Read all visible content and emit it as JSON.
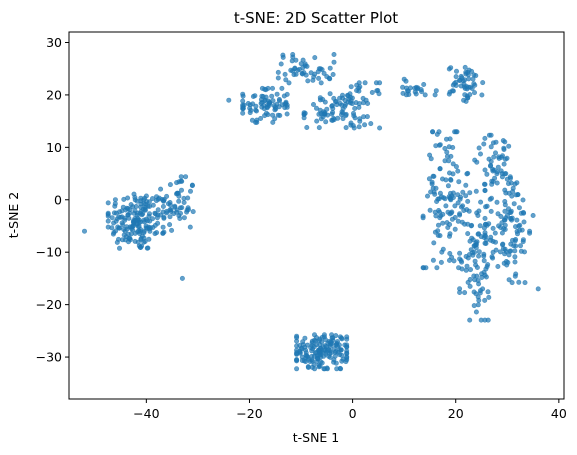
{
  "chart_data": {
    "type": "scatter",
    "title": "t-SNE: 2D Scatter Plot",
    "xlabel": "t-SNE 1",
    "ylabel": "t-SNE 2",
    "xlim": [
      -55,
      41
    ],
    "ylim": [
      -38,
      32
    ],
    "xticks": [
      -40,
      -20,
      0,
      20,
      40
    ],
    "yticks": [
      -30,
      -20,
      -10,
      0,
      10,
      20,
      30
    ],
    "grid": false,
    "legend": "none",
    "color": "#1f77b4",
    "marker_opacity": 0.7,
    "clusters": [
      {
        "center": [
          -42,
          -4
        ],
        "spread": [
          5,
          5
        ],
        "n": 170
      },
      {
        "center": [
          -34,
          -1
        ],
        "spread": [
          3,
          5
        ],
        "n": 60
      },
      {
        "center": [
          -17,
          18
        ],
        "spread": [
          4,
          3
        ],
        "n": 80
      },
      {
        "center": [
          -9,
          25
        ],
        "spread": [
          5,
          2.5
        ],
        "n": 50
      },
      {
        "center": [
          -4,
          17
        ],
        "spread": [
          5,
          3
        ],
        "n": 70
      },
      {
        "center": [
          2,
          18
        ],
        "spread": [
          3,
          4
        ],
        "n": 35
      },
      {
        "center": [
          12,
          21
        ],
        "spread": [
          4,
          1.5
        ],
        "n": 20
      },
      {
        "center": [
          22,
          22
        ],
        "spread": [
          3,
          3
        ],
        "n": 50
      },
      {
        "center": [
          -6,
          -29
        ],
        "spread": [
          4.5,
          3
        ],
        "n": 160
      },
      {
        "center": [
          18,
          0
        ],
        "spread": [
          4,
          12
        ],
        "n": 120
      },
      {
        "center": [
          24,
          -10
        ],
        "spread": [
          3,
          12
        ],
        "n": 100
      },
      {
        "center": [
          30,
          -5
        ],
        "spread": [
          4,
          10
        ],
        "n": 120
      },
      {
        "center": [
          28,
          8
        ],
        "spread": [
          4,
          4
        ],
        "n": 40
      }
    ],
    "points": [
      [
        -33,
        -15
      ],
      [
        35,
        -3
      ],
      [
        -52,
        -6
      ],
      [
        -24,
        19
      ],
      [
        16,
        20
      ],
      [
        10,
        23
      ],
      [
        36,
        -17
      ]
    ]
  }
}
